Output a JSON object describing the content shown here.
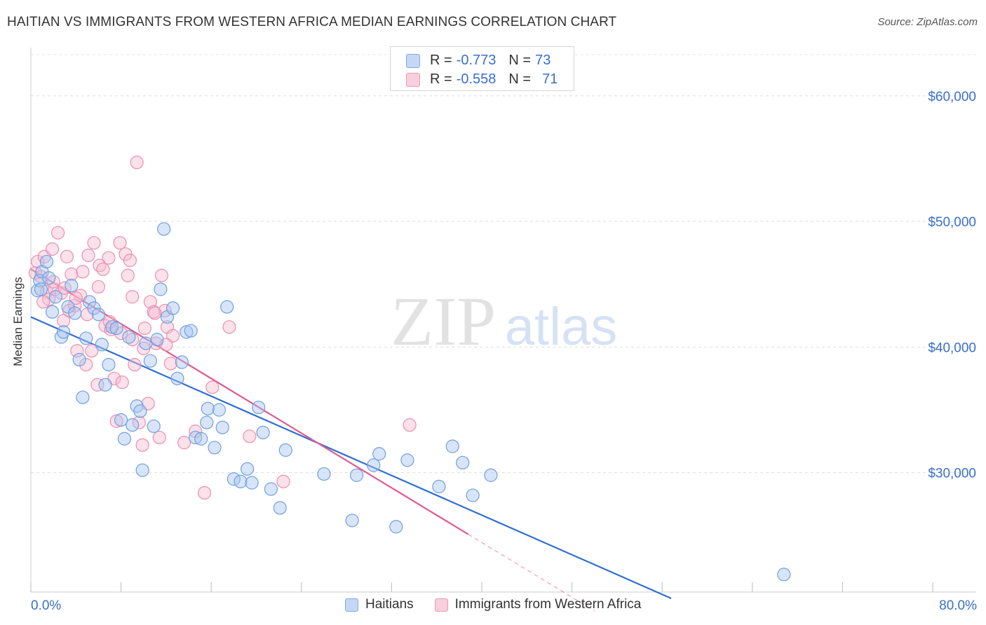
{
  "title": "HAITIAN VS IMMIGRANTS FROM WESTERN AFRICA MEDIAN EARNINGS CORRELATION CHART",
  "source": "Source: ZipAtlas.com",
  "watermark": {
    "zip": "ZIP",
    "atlas": "atlas"
  },
  "legend_top": [
    {
      "r_label": "R =",
      "r_value": "-0.773",
      "n_label": "N =",
      "n_value": "73"
    },
    {
      "r_label": "R =",
      "r_value": "-0.558",
      "n_label": "N =",
      "n_value": "71"
    }
  ],
  "colors": {
    "blue_fill": "#a9c6f0",
    "blue_stroke": "#6f9fe0",
    "blue_line": "#2f6fd0",
    "pink_fill": "#f5bdd0",
    "pink_stroke": "#ea8fb0",
    "pink_line": "#e05a8c",
    "axis_text": "#3a6fc9",
    "grid": "#dddddd"
  },
  "chart_data": {
    "type": "scatter",
    "title": "HAITIAN VS IMMIGRANTS FROM WESTERN AFRICA MEDIAN EARNINGS CORRELATION CHART",
    "xlabel": "",
    "ylabel": "Median Earnings",
    "xlim": [
      0,
      80
    ],
    "ylim": [
      20500,
      63500
    ],
    "x_tick_labels": [
      "0.0%",
      "80.0%"
    ],
    "y_ticks": [
      30000,
      40000,
      50000,
      60000
    ],
    "y_tick_labels": [
      "$30,000",
      "$40,000",
      "$50,000",
      "$60,000"
    ],
    "grid": true,
    "legend_position": "top-center",
    "series": [
      {
        "name": "Haitians",
        "color": "#6f9fe0",
        "trend": {
          "x": [
            0,
            56.8
          ],
          "y": [
            42400,
            20000
          ]
        },
        "points": [
          [
            0.6,
            44500
          ],
          [
            0.8,
            45300
          ],
          [
            1.0,
            46000
          ],
          [
            1.4,
            46800
          ],
          [
            1.9,
            42800
          ],
          [
            2.2,
            44000
          ],
          [
            2.7,
            40800
          ],
          [
            2.9,
            41200
          ],
          [
            3.3,
            43200
          ],
          [
            3.6,
            44900
          ],
          [
            3.9,
            42700
          ],
          [
            4.3,
            39000
          ],
          [
            4.6,
            36000
          ],
          [
            4.9,
            40700
          ],
          [
            5.2,
            43600
          ],
          [
            5.6,
            43100
          ],
          [
            6.0,
            42600
          ],
          [
            6.3,
            40200
          ],
          [
            6.6,
            37000
          ],
          [
            6.9,
            38600
          ],
          [
            7.2,
            41600
          ],
          [
            7.6,
            41500
          ],
          [
            8.0,
            34200
          ],
          [
            8.3,
            32700
          ],
          [
            8.7,
            40800
          ],
          [
            9.0,
            33800
          ],
          [
            9.4,
            35300
          ],
          [
            9.7,
            34900
          ],
          [
            9.9,
            30200
          ],
          [
            10.2,
            40300
          ],
          [
            10.6,
            38900
          ],
          [
            10.9,
            33700
          ],
          [
            11.2,
            40600
          ],
          [
            11.5,
            44600
          ],
          [
            11.8,
            49400
          ],
          [
            12.1,
            42400
          ],
          [
            12.6,
            43100
          ],
          [
            13.0,
            37500
          ],
          [
            13.4,
            38800
          ],
          [
            13.8,
            41200
          ],
          [
            14.2,
            41300
          ],
          [
            14.6,
            32800
          ],
          [
            15.1,
            32700
          ],
          [
            15.6,
            34000
          ],
          [
            15.7,
            35100
          ],
          [
            16.3,
            32000
          ],
          [
            16.7,
            35000
          ],
          [
            17.0,
            33600
          ],
          [
            17.4,
            43200
          ],
          [
            18.0,
            29500
          ],
          [
            18.6,
            29300
          ],
          [
            19.2,
            30300
          ],
          [
            19.6,
            29200
          ],
          [
            20.2,
            35200
          ],
          [
            20.6,
            33200
          ],
          [
            21.3,
            28700
          ],
          [
            22.1,
            27200
          ],
          [
            22.6,
            31800
          ],
          [
            26.0,
            29900
          ],
          [
            28.5,
            26200
          ],
          [
            28.9,
            29800
          ],
          [
            30.4,
            30600
          ],
          [
            30.9,
            31500
          ],
          [
            32.4,
            25700
          ],
          [
            33.4,
            31000
          ],
          [
            36.2,
            28900
          ],
          [
            37.4,
            32100
          ],
          [
            38.3,
            30800
          ],
          [
            39.2,
            28200
          ],
          [
            40.8,
            29800
          ],
          [
            66.8,
            21900
          ],
          [
            0.9,
            44600
          ],
          [
            1.6,
            45500
          ]
        ]
      },
      {
        "name": "Immigrants from Western Africa",
        "color": "#ea8fb0",
        "trend": {
          "x": [
            0,
            38.8
          ],
          "y": [
            46200,
            25100
          ]
        },
        "trend_dashed": {
          "x": [
            38.8,
            50
          ],
          "y": [
            25100,
            19000
          ]
        },
        "points": [
          [
            0.4,
            45900
          ],
          [
            0.6,
            46800
          ],
          [
            0.9,
            45600
          ],
          [
            1.2,
            47200
          ],
          [
            1.4,
            44400
          ],
          [
            1.6,
            43800
          ],
          [
            1.9,
            47800
          ],
          [
            2.1,
            44600
          ],
          [
            2.4,
            49100
          ],
          [
            2.7,
            44300
          ],
          [
            2.9,
            42100
          ],
          [
            3.2,
            47200
          ],
          [
            3.4,
            42900
          ],
          [
            3.6,
            45800
          ],
          [
            3.9,
            43300
          ],
          [
            4.1,
            39700
          ],
          [
            4.4,
            44100
          ],
          [
            4.6,
            46000
          ],
          [
            4.9,
            38600
          ],
          [
            5.1,
            47300
          ],
          [
            5.4,
            39700
          ],
          [
            5.6,
            48300
          ],
          [
            5.9,
            37000
          ],
          [
            6.1,
            46500
          ],
          [
            6.4,
            46200
          ],
          [
            6.6,
            41700
          ],
          [
            6.9,
            47100
          ],
          [
            7.1,
            41400
          ],
          [
            7.4,
            37500
          ],
          [
            7.6,
            34100
          ],
          [
            7.9,
            48300
          ],
          [
            8.1,
            37200
          ],
          [
            8.4,
            47400
          ],
          [
            8.6,
            45700
          ],
          [
            8.8,
            46900
          ],
          [
            9.0,
            44000
          ],
          [
            9.2,
            38600
          ],
          [
            9.4,
            54700
          ],
          [
            9.6,
            34000
          ],
          [
            9.9,
            32200
          ],
          [
            10.1,
            41500
          ],
          [
            10.4,
            35500
          ],
          [
            10.6,
            43600
          ],
          [
            10.9,
            42800
          ],
          [
            11.1,
            40300
          ],
          [
            11.4,
            32800
          ],
          [
            11.6,
            45700
          ],
          [
            11.9,
            42900
          ],
          [
            12.1,
            41600
          ],
          [
            12.4,
            38700
          ],
          [
            12.6,
            40900
          ],
          [
            13.6,
            32400
          ],
          [
            14.6,
            33300
          ],
          [
            15.4,
            28400
          ],
          [
            16.1,
            36800
          ],
          [
            17.6,
            41600
          ],
          [
            19.4,
            32900
          ],
          [
            22.4,
            29300
          ],
          [
            33.6,
            33800
          ],
          [
            1.1,
            43600
          ],
          [
            2.0,
            45200
          ],
          [
            3.0,
            44700
          ],
          [
            4.0,
            43900
          ],
          [
            5.0,
            42600
          ],
          [
            6.0,
            44800
          ],
          [
            7.0,
            42000
          ],
          [
            8.0,
            41100
          ],
          [
            9.0,
            40600
          ],
          [
            10.0,
            39900
          ],
          [
            11.0,
            42700
          ],
          [
            12.0,
            40200
          ]
        ]
      }
    ]
  },
  "legend_bottom": [
    {
      "label": "Haitians"
    },
    {
      "label": "Immigrants from Western Africa"
    }
  ]
}
